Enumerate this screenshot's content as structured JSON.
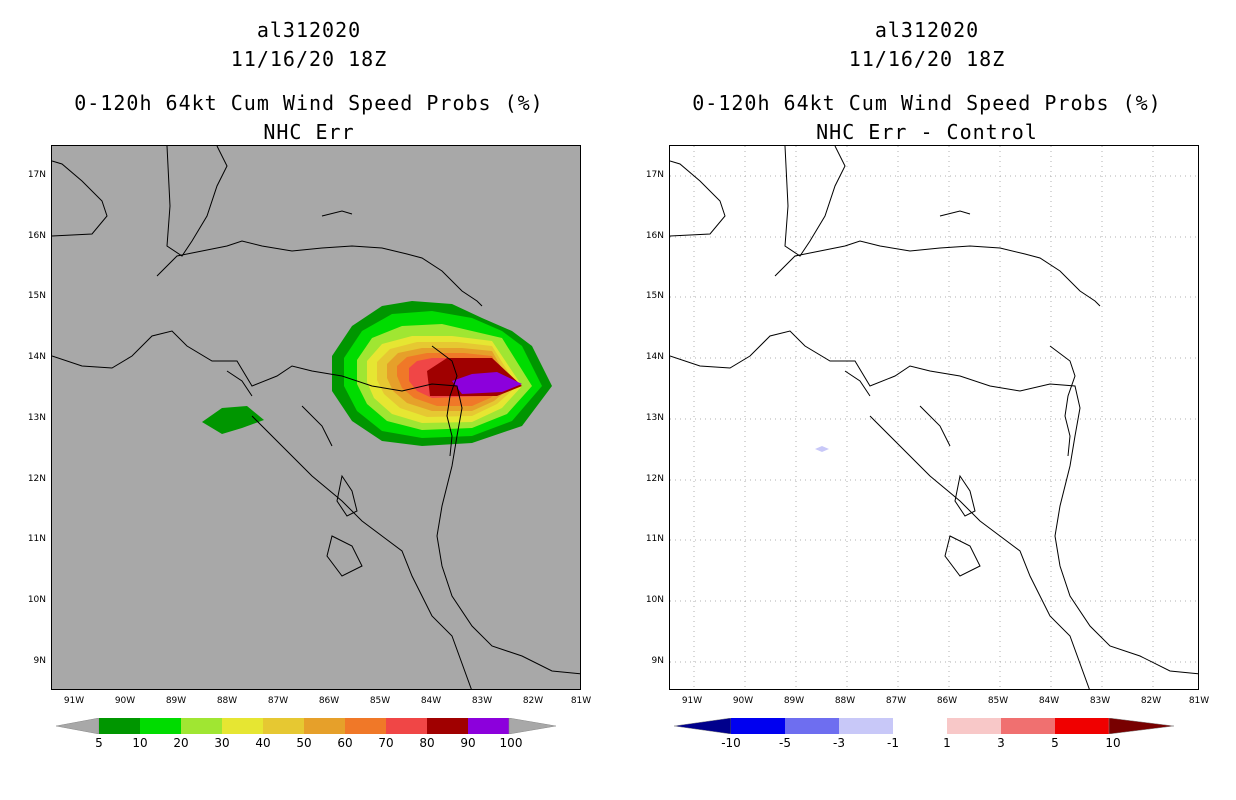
{
  "left": {
    "title_line1": "al312020",
    "title_line2": "11/16/20 18Z",
    "title_line3": "0-120h 64kt Cum Wind Speed Probs (%)",
    "title_line4": "NHC Err",
    "background": "#a8a8a8",
    "y_labels": [
      "17N",
      "16N",
      "15N",
      "14N",
      "13N",
      "12N",
      "11N",
      "10N",
      "9N"
    ],
    "x_labels": [
      "91W",
      "90W",
      "89W",
      "88W",
      "87W",
      "86W",
      "85W",
      "84W",
      "83W",
      "82W",
      "81W"
    ],
    "colorbar": {
      "colors": [
        "#009600",
        "#00dc00",
        "#a0e632",
        "#e6e632",
        "#e6c832",
        "#e6a02a",
        "#f07828",
        "#f04646",
        "#a00000",
        "#8c00dc"
      ],
      "end_left_color": "#a8a8a8",
      "end_right_color": "#a8a8a8",
      "labels": [
        "5",
        "10",
        "20",
        "30",
        "40",
        "50",
        "60",
        "70",
        "80",
        "90",
        "100"
      ]
    }
  },
  "right": {
    "title_line1": "al312020",
    "title_line2": "11/16/20 18Z",
    "title_line3": "0-120h 64kt Cum Wind Speed Probs (%)",
    "title_line4": "NHC Err - Control",
    "background": "#ffffff",
    "y_labels": [
      "17N",
      "16N",
      "15N",
      "14N",
      "13N",
      "12N",
      "11N",
      "10N",
      "9N"
    ],
    "x_labels": [
      "91W",
      "90W",
      "89W",
      "88W",
      "87W",
      "86W",
      "85W",
      "84W",
      "83W",
      "82W",
      "81W"
    ],
    "colorbar": {
      "colors": [
        "#0000f0",
        "#6e6ef0",
        "#c8c8f8",
        "#ffffff",
        "#f8c8c8",
        "#f07070",
        "#f00000"
      ],
      "end_left_color": "#00008c",
      "end_right_color": "#780000",
      "labels": [
        "-10",
        "-5",
        "-3",
        "-1",
        "1",
        "3",
        "5",
        "10"
      ]
    }
  }
}
